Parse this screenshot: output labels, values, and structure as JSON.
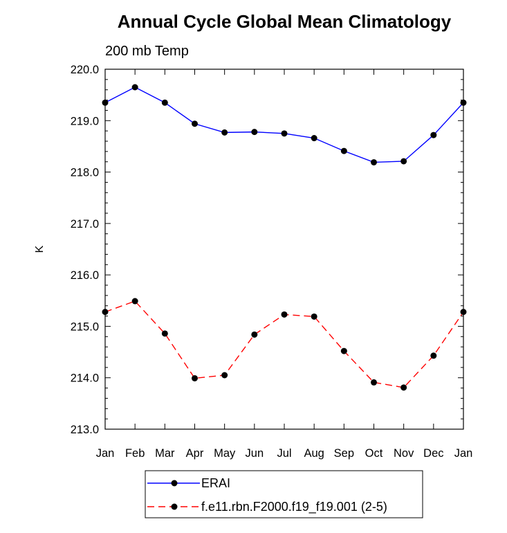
{
  "chart_data": {
    "type": "line",
    "title": "Annual Cycle Global Mean Climatology",
    "subtitle": "200 mb Temp",
    "xlabel": "",
    "ylabel": "K",
    "categories": [
      "Jan",
      "Feb",
      "Mar",
      "Apr",
      "May",
      "Jun",
      "Jul",
      "Aug",
      "Sep",
      "Oct",
      "Nov",
      "Dec",
      "Jan"
    ],
    "ylim": [
      213.0,
      220.0
    ],
    "yticks": [
      "213.0",
      "214.0",
      "215.0",
      "216.0",
      "217.0",
      "218.0",
      "219.0",
      "220.0"
    ],
    "grid": false,
    "legend_position": "bottom-center",
    "series": [
      {
        "name": "ERAI",
        "color": "#0000ff",
        "dash": "solid",
        "values": [
          219.35,
          219.65,
          219.35,
          218.94,
          218.77,
          218.78,
          218.75,
          218.66,
          218.41,
          218.19,
          218.21,
          218.72,
          219.35
        ]
      },
      {
        "name": "f.e11.rbn.F2000.f19_f19.001 (2-5)",
        "color": "#ff0000",
        "dash": "dashed",
        "values": [
          215.28,
          215.49,
          214.86,
          213.99,
          214.05,
          214.84,
          215.23,
          215.19,
          214.52,
          213.91,
          213.81,
          214.43,
          215.28
        ]
      }
    ]
  }
}
